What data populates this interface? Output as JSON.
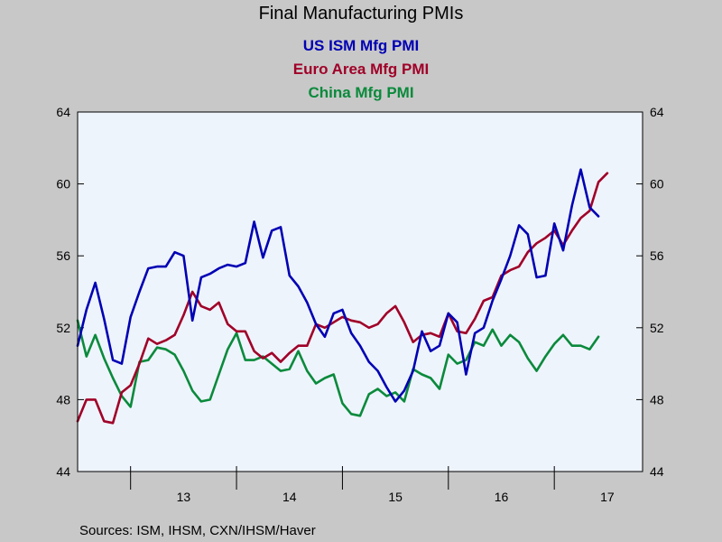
{
  "chart_data": {
    "type": "line",
    "title": "Final Manufacturing PMIs",
    "source": "Sources:  ISM, IHSM, CXN/IHSM/Haver",
    "ylim": [
      44,
      64
    ],
    "y_ticks": [
      "44",
      "48",
      "52",
      "56",
      "60",
      "64"
    ],
    "x_ticks": [
      {
        "label": "13",
        "pos": 2013.5
      },
      {
        "label": "14",
        "pos": 2014.5
      },
      {
        "label": "15",
        "pos": 2015.5
      },
      {
        "label": "16",
        "pos": 2016.5
      },
      {
        "label": "17",
        "pos": 2017.5
      }
    ],
    "x_range_start": "2012-07",
    "x_range_end": "2017-11",
    "x_start": "2012-07",
    "x_step": "monthly",
    "grid": false,
    "plot_background": "#eef4fc",
    "series": [
      {
        "name": "US ISM Mfg PMI",
        "color": "#0000b4",
        "values": [
          51.0,
          53.0,
          54.5,
          52.5,
          50.2,
          50.0,
          52.6,
          54.0,
          55.3,
          55.4,
          55.4,
          56.2,
          56.0,
          52.4,
          54.8,
          55.0,
          55.3,
          55.5,
          55.4,
          55.6,
          57.9,
          55.9,
          57.4,
          57.6,
          54.9,
          54.3,
          53.4,
          52.2,
          51.5,
          52.8,
          53.0,
          51.7,
          51.0,
          50.1,
          49.6,
          48.7,
          47.9,
          48.5,
          49.6,
          51.8,
          50.7,
          51.0,
          52.8,
          52.3,
          49.4,
          51.7,
          52.0,
          53.5,
          54.7,
          56.0,
          57.7,
          57.2,
          54.8,
          54.9,
          57.8,
          56.3,
          58.8,
          60.8,
          58.7,
          58.2
        ]
      },
      {
        "name": "Euro Area Mfg PMI",
        "color": "#a00028",
        "values": [
          46.8,
          48.0,
          48.0,
          46.8,
          46.7,
          48.4,
          48.8,
          50.0,
          51.4,
          51.1,
          51.3,
          51.6,
          52.7,
          54.0,
          53.2,
          53.0,
          53.4,
          52.2,
          51.8,
          51.8,
          50.7,
          50.3,
          50.6,
          50.1,
          50.6,
          51.0,
          51.0,
          52.2,
          52.0,
          52.3,
          52.6,
          52.4,
          52.3,
          52.0,
          52.2,
          52.8,
          53.2,
          52.3,
          51.2,
          51.6,
          51.7,
          51.5,
          52.8,
          51.8,
          51.7,
          52.5,
          53.5,
          53.7,
          54.9,
          55.2,
          55.4,
          56.2,
          56.7,
          57.0,
          57.4,
          56.6,
          57.4,
          58.1,
          58.5,
          60.1,
          60.6
        ]
      },
      {
        "name": "China Mfg PMI",
        "color": "#0a8a3c",
        "values": [
          52.4,
          50.4,
          51.6,
          50.3,
          49.2,
          48.2,
          47.6,
          50.1,
          50.2,
          50.9,
          50.8,
          50.5,
          49.6,
          48.5,
          47.9,
          48.0,
          49.4,
          50.8,
          51.7,
          50.2,
          50.2,
          50.4,
          50.0,
          49.6,
          49.7,
          50.7,
          49.6,
          48.9,
          49.2,
          49.4,
          47.8,
          47.2,
          47.1,
          48.3,
          48.6,
          48.2,
          48.4,
          47.9,
          49.7,
          49.4,
          49.2,
          48.6,
          50.5,
          50.0,
          50.2,
          51.2,
          51.0,
          51.9,
          51.0,
          51.6,
          51.2,
          50.3,
          49.6,
          50.4,
          51.1,
          51.6,
          51.0,
          51.0,
          50.8,
          51.5
        ]
      }
    ]
  }
}
